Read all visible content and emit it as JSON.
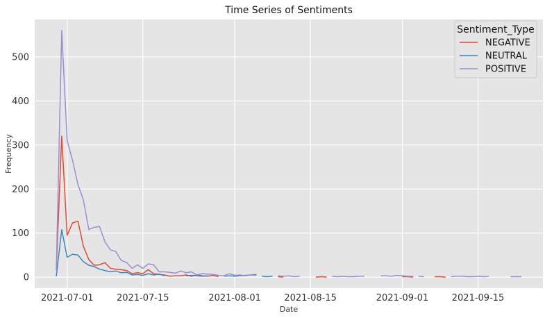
{
  "chart_data": {
    "type": "line",
    "title": "Time Series of Sentiments",
    "xlabel": "Date",
    "ylabel": "Frequency",
    "x_ticks": [
      "2021-07-01",
      "2021-07-15",
      "2021-08-01",
      "2021-08-15",
      "2021-09-01",
      "2021-09-15"
    ],
    "y_ticks": [
      0,
      100,
      200,
      300,
      400,
      500
    ],
    "xlim": [
      "2021-06-25",
      "2021-09-27"
    ],
    "ylim": [
      -25,
      585
    ],
    "grid": true,
    "legend": {
      "title": "Sentiment_Type",
      "placement": "top-right"
    },
    "series": [
      {
        "name": "NEGATIVE",
        "color": "#E24A33",
        "segments": [
          [
            [
              "2021-06-29",
              18
            ],
            [
              "2021-06-30",
              320
            ],
            [
              "2021-07-01",
              95
            ],
            [
              "2021-07-02",
              123
            ],
            [
              "2021-07-03",
              127
            ],
            [
              "2021-07-04",
              70
            ],
            [
              "2021-07-05",
              40
            ],
            [
              "2021-07-06",
              27
            ],
            [
              "2021-07-07",
              28
            ],
            [
              "2021-07-08",
              33
            ],
            [
              "2021-07-09",
              20
            ],
            [
              "2021-07-10",
              18
            ],
            [
              "2021-07-11",
              17
            ],
            [
              "2021-07-12",
              15
            ],
            [
              "2021-07-13",
              8
            ],
            [
              "2021-07-14",
              10
            ],
            [
              "2021-07-15",
              8
            ],
            [
              "2021-07-16",
              17
            ],
            [
              "2021-07-17",
              8
            ],
            [
              "2021-07-18",
              6
            ],
            [
              "2021-07-19",
              5
            ],
            [
              "2021-07-20",
              2
            ],
            [
              "2021-07-21",
              3
            ],
            [
              "2021-07-22",
              3
            ],
            [
              "2021-07-23",
              5
            ],
            [
              "2021-07-24",
              2
            ],
            [
              "2021-07-25",
              5
            ],
            [
              "2021-07-26",
              3
            ],
            [
              "2021-07-27",
              2
            ],
            [
              "2021-07-28",
              4
            ],
            [
              "2021-07-29",
              1
            ]
          ],
          [
            [
              "2021-08-01",
              3
            ],
            [
              "2021-08-02",
              4
            ],
            [
              "2021-08-03",
              3
            ]
          ],
          [
            [
              "2021-08-09",
              1
            ],
            [
              "2021-08-10",
              0
            ]
          ],
          [
            [
              "2021-08-16",
              0
            ],
            [
              "2021-08-17",
              1
            ],
            [
              "2021-08-18",
              0
            ]
          ],
          [
            [
              "2021-09-01",
              1
            ],
            [
              "2021-09-02",
              1
            ],
            [
              "2021-09-03",
              0
            ]
          ],
          [
            [
              "2021-09-07",
              1
            ],
            [
              "2021-09-08",
              1
            ],
            [
              "2021-09-09",
              0
            ]
          ]
        ]
      },
      {
        "name": "NEUTRAL",
        "color": "#348ABD",
        "segments": [
          [
            [
              "2021-06-29",
              2
            ],
            [
              "2021-06-30",
              108
            ],
            [
              "2021-07-01",
              45
            ],
            [
              "2021-07-02",
              52
            ],
            [
              "2021-07-03",
              50
            ],
            [
              "2021-07-04",
              35
            ],
            [
              "2021-07-05",
              27
            ],
            [
              "2021-07-06",
              24
            ],
            [
              "2021-07-07",
              18
            ],
            [
              "2021-07-08",
              15
            ],
            [
              "2021-07-09",
              12
            ],
            [
              "2021-07-10",
              14
            ],
            [
              "2021-07-11",
              10
            ],
            [
              "2021-07-12",
              11
            ],
            [
              "2021-07-13",
              5
            ],
            [
              "2021-07-14",
              6
            ],
            [
              "2021-07-15",
              4
            ],
            [
              "2021-07-16",
              8
            ],
            [
              "2021-07-17",
              5
            ],
            [
              "2021-07-18",
              7
            ],
            [
              "2021-07-19",
              3
            ]
          ],
          [
            [
              "2021-07-23",
              3
            ],
            [
              "2021-07-24",
              4
            ],
            [
              "2021-07-25",
              3
            ],
            [
              "2021-07-26",
              2
            ],
            [
              "2021-07-27",
              3
            ]
          ],
          [
            [
              "2021-07-30",
              2
            ],
            [
              "2021-07-31",
              3
            ],
            [
              "2021-08-01",
              2
            ],
            [
              "2021-08-02",
              3
            ],
            [
              "2021-08-03",
              4
            ],
            [
              "2021-08-04",
              5
            ],
            [
              "2021-08-05",
              6
            ]
          ],
          [
            [
              "2021-08-06",
              2
            ],
            [
              "2021-08-07",
              1
            ],
            [
              "2021-08-08",
              2
            ]
          ]
        ]
      },
      {
        "name": "POSITIVE",
        "color": "#988ED5",
        "segments": [
          [
            [
              "2021-06-29",
              15
            ],
            [
              "2021-06-30",
              560
            ],
            [
              "2021-07-01",
              310
            ],
            [
              "2021-07-02",
              265
            ],
            [
              "2021-07-03",
              210
            ],
            [
              "2021-07-04",
              175
            ],
            [
              "2021-07-05",
              108
            ],
            [
              "2021-07-06",
              113
            ],
            [
              "2021-07-07",
              115
            ],
            [
              "2021-07-08",
              80
            ],
            [
              "2021-07-09",
              62
            ],
            [
              "2021-07-10",
              58
            ],
            [
              "2021-07-11",
              38
            ],
            [
              "2021-07-12",
              33
            ],
            [
              "2021-07-13",
              20
            ],
            [
              "2021-07-14",
              28
            ],
            [
              "2021-07-15",
              20
            ],
            [
              "2021-07-16",
              30
            ],
            [
              "2021-07-17",
              28
            ],
            [
              "2021-07-18",
              12
            ],
            [
              "2021-07-19",
              12
            ],
            [
              "2021-07-20",
              11
            ],
            [
              "2021-07-21",
              9
            ],
            [
              "2021-07-22",
              14
            ],
            [
              "2021-07-23",
              10
            ],
            [
              "2021-07-24",
              12
            ],
            [
              "2021-07-25",
              5
            ],
            [
              "2021-07-26",
              8
            ],
            [
              "2021-07-27",
              7
            ],
            [
              "2021-07-28",
              6
            ],
            [
              "2021-07-29",
              4
            ],
            [
              "2021-07-30",
              3
            ],
            [
              "2021-07-31",
              8
            ],
            [
              "2021-08-01",
              4
            ],
            [
              "2021-08-02",
              5
            ],
            [
              "2021-08-03",
              3
            ],
            [
              "2021-08-04",
              5
            ],
            [
              "2021-08-05",
              4
            ]
          ],
          [
            [
              "2021-08-09",
              3
            ],
            [
              "2021-08-10",
              2
            ],
            [
              "2021-08-11",
              3
            ],
            [
              "2021-08-12",
              1
            ],
            [
              "2021-08-13",
              2
            ]
          ],
          [
            [
              "2021-08-19",
              2
            ],
            [
              "2021-08-20",
              1
            ],
            [
              "2021-08-21",
              2
            ],
            [
              "2021-08-22",
              1
            ],
            [
              "2021-08-23",
              1
            ],
            [
              "2021-08-24",
              2
            ],
            [
              "2021-08-25",
              2
            ]
          ],
          [
            [
              "2021-08-28",
              3
            ],
            [
              "2021-08-29",
              3
            ],
            [
              "2021-08-30",
              2
            ],
            [
              "2021-08-31",
              4
            ],
            [
              "2021-09-01",
              3
            ],
            [
              "2021-09-02",
              2
            ],
            [
              "2021-09-03",
              2
            ]
          ],
          [
            [
              "2021-09-04",
              2
            ],
            [
              "2021-09-05",
              1
            ]
          ],
          [
            [
              "2021-09-10",
              1
            ],
            [
              "2021-09-11",
              2
            ],
            [
              "2021-09-12",
              2
            ],
            [
              "2021-09-13",
              1
            ],
            [
              "2021-09-14",
              1
            ],
            [
              "2021-09-15",
              2
            ],
            [
              "2021-09-16",
              1
            ],
            [
              "2021-09-17",
              2
            ]
          ],
          [
            [
              "2021-09-21",
              1
            ],
            [
              "2021-09-22",
              1
            ],
            [
              "2021-09-23",
              1
            ]
          ]
        ]
      }
    ]
  }
}
